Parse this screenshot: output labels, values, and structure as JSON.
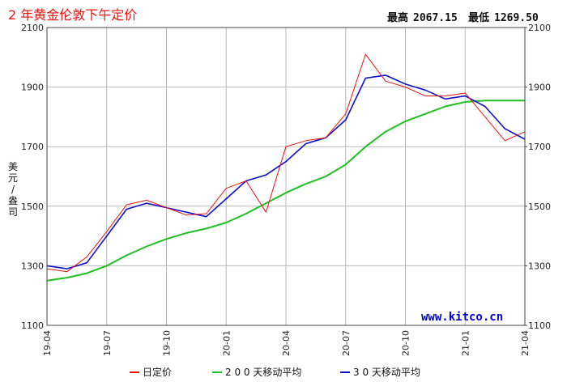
{
  "header": {
    "title": "2 年黄金伦敦下午定价",
    "high_label": "最高",
    "high_value": "2067.15",
    "low_label": "最低",
    "low_value": "1269.50"
  },
  "brand": "www.kitco.cn",
  "colors": {
    "daily": "#ee1111",
    "ma200": "#1fbf1f",
    "ma30": "#1010cc",
    "title": "#ee1111",
    "grid": "#b9b9b9",
    "frame": "#444444"
  },
  "chart_data": {
    "type": "line",
    "title": "2 年黄金伦敦下午定价",
    "ylabel": "美元/盎司",
    "ylim": [
      1100,
      2100
    ],
    "y_ticks": [
      1100,
      1300,
      1500,
      1700,
      1900,
      2100
    ],
    "y_tick_labels": [
      "1100",
      "1300",
      "1500",
      "1700",
      "1900",
      "2100"
    ],
    "x_tick_labels": [
      "19-04",
      "19-07",
      "19-10",
      "20-01",
      "20-04",
      "20-07",
      "20-10",
      "21-01",
      "21-04"
    ],
    "grid": true,
    "legend_position": "bottom",
    "series": [
      {
        "name": "日定价",
        "color": "#ee1111",
        "x": [
          "19-04",
          "19-05",
          "19-06",
          "19-07",
          "19-08",
          "19-09",
          "19-10",
          "19-11",
          "19-12",
          "20-01",
          "20-02",
          "20-03",
          "20-04",
          "20-05",
          "20-06",
          "20-07",
          "20-08",
          "20-09",
          "20-10",
          "20-11",
          "20-12",
          "21-01",
          "21-02",
          "21-03",
          "21-04"
        ],
        "values": [
          1290,
          1280,
          1330,
          1415,
          1505,
          1520,
          1495,
          1470,
          1475,
          1560,
          1585,
          1480,
          1700,
          1720,
          1730,
          1810,
          2010,
          1920,
          1900,
          1870,
          1870,
          1880,
          1800,
          1720,
          1750
        ]
      },
      {
        "name": "2 0 0 天移动平均",
        "color": "#1fbf1f",
        "x": [
          "19-04",
          "19-05",
          "19-06",
          "19-07",
          "19-08",
          "19-09",
          "19-10",
          "19-11",
          "19-12",
          "20-01",
          "20-02",
          "20-03",
          "20-04",
          "20-05",
          "20-06",
          "20-07",
          "20-08",
          "20-09",
          "20-10",
          "20-11",
          "20-12",
          "21-01",
          "21-02",
          "21-03",
          "21-04"
        ],
        "values": [
          1250,
          1260,
          1275,
          1300,
          1335,
          1365,
          1390,
          1410,
          1425,
          1445,
          1475,
          1510,
          1545,
          1575,
          1600,
          1640,
          1700,
          1750,
          1785,
          1810,
          1835,
          1850,
          1855,
          1855,
          1855
        ]
      },
      {
        "name": "3 0 天移动平均",
        "color": "#1010cc",
        "x": [
          "19-04",
          "19-05",
          "19-06",
          "19-07",
          "19-08",
          "19-09",
          "19-10",
          "19-11",
          "19-12",
          "20-01",
          "20-02",
          "20-03",
          "20-04",
          "20-05",
          "20-06",
          "20-07",
          "20-08",
          "20-09",
          "20-10",
          "20-11",
          "20-12",
          "21-01",
          "21-02",
          "21-03",
          "21-04"
        ],
        "values": [
          1300,
          1290,
          1310,
          1400,
          1490,
          1510,
          1495,
          1480,
          1465,
          1525,
          1585,
          1605,
          1650,
          1710,
          1730,
          1790,
          1930,
          1940,
          1910,
          1890,
          1860,
          1870,
          1835,
          1760,
          1725
        ]
      }
    ]
  }
}
